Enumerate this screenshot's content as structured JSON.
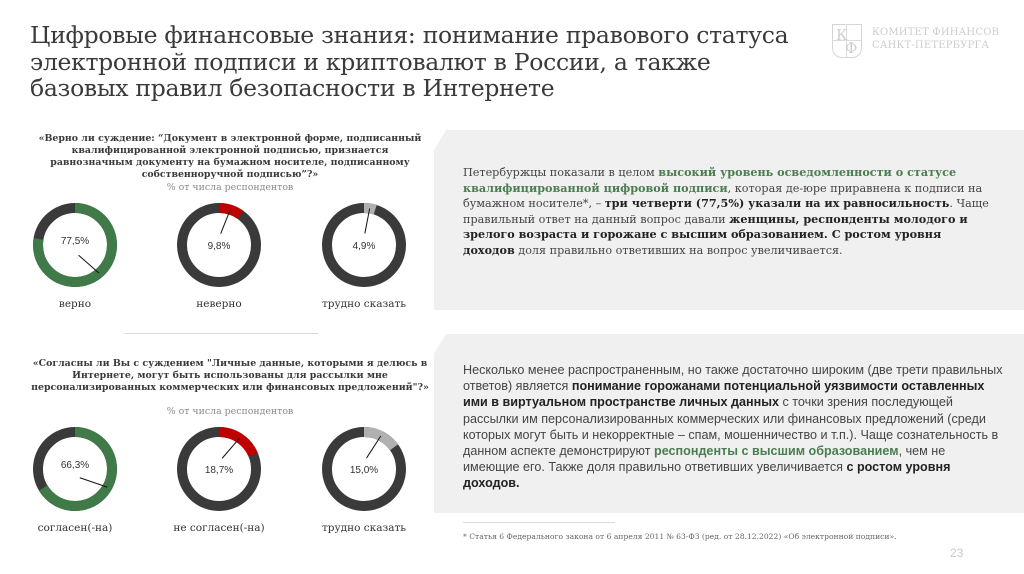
{
  "title": "Цифровые финансовые знания: понимание правового статуса электронной подписи и криптовалют в России, а также базовых правил безопасности в Интернете",
  "logo": {
    "mark_letters": [
      "К",
      "Ф"
    ],
    "line1": "КОМИТЕТ ФИНАНСОВ",
    "line2": "САНКТ-ПЕТЕРБУРГА"
  },
  "colors": {
    "correct": "#3f7a48",
    "incorrect": "#c00000",
    "unsure": "#b0b0b0",
    "base": "#3a3a3a",
    "panel_bg": "#f0f0f0",
    "highlight_green": "#4a7d4f"
  },
  "section1": {
    "question": "«Верно ли суждение: “Документ в электронной форме, подписанный квалифицированной электронной подписью, признается равнозначным документу на бумажном носителе, подписанному собственноручной подписью”?»",
    "subnote": "% от числа респондентов",
    "donuts": [
      {
        "label": "верно",
        "value_text": "77,5%",
        "value": 77.5,
        "color_key": "correct"
      },
      {
        "label": "неверно",
        "value_text": "9,8%",
        "value": 9.8,
        "color_key": "incorrect"
      },
      {
        "label": "трудно сказать",
        "value_text": "4,9%",
        "value": 4.9,
        "color_key": "unsure"
      }
    ],
    "panel": {
      "p1": "Петербуржцы показали в целом ",
      "g1": "высокий уровень осведомленности о статусе квалифицированной цифровой подписи",
      "p2": ", которая де-юре приравнена к подписи на бумажном носителе*, – ",
      "b1": "три четверти (77,5%) указали на их равносильность",
      "p3": ". Чаще правильный ответ на данный вопрос давали ",
      "b2": "женщины, респонденты молодого и зрелого возраста и горожане с высшим образованием. С ростом уровня доходов",
      "p4": " доля правильно ответивших на вопрос увеличивается."
    }
  },
  "section2": {
    "question": "«Согласны ли Вы с суждением \"Личные данные, которыми я делюсь в Интернете, могут быть использованы для рассылки мне персонализированных коммерческих или финансовых предложений\"?»",
    "subnote": "% от числа респондентов",
    "donuts": [
      {
        "label": "согласен(-на)",
        "value_text": "66,3%",
        "value": 66.3,
        "color_key": "correct"
      },
      {
        "label": "не согласен(-на)",
        "value_text": "18,7%",
        "value": 18.7,
        "color_key": "incorrect"
      },
      {
        "label": "трудно сказать",
        "value_text": "15,0%",
        "value": 15.0,
        "color_key": "unsure"
      }
    ],
    "panel": {
      "p1": "Несколько менее распространенным, но также достаточно широким (две трети правильных ответов) является ",
      "b1": "понимание горожанами потенциальной уязвимости оставленных ими в виртуальном пространстве личных данных",
      "p2": " с точки зрения последующей рассылки им персонализированных коммерческих или финансовых предложений (среди которых могут быть и некорректные – спам, мошенничество и т.п.). Чаще сознательность в данном аспекте демонстрируют ",
      "g1": "респонденты с высшим образованием",
      "p3": ", чем не имеющие его. Также доля правильно ответивших увеличивается ",
      "b2": "с ростом уровня доходов."
    }
  },
  "footnote": "* Статья 6 Федерального закона от 6 апреля 2011 № 63-ФЗ (ред. от 28.12.2022) «Об электронной подписи».",
  "page_number": "23",
  "chart_data": [
    {
      "type": "pie",
      "title": "«Верно ли суждение: “Документ в электронной форме, подписанный квалифицированной электронной подписью, признается равнозначным документу на бумажном носителе, подписанному собственноручной подписью”?»",
      "subtitle": "% от числа респондентов",
      "categories": [
        "верно",
        "неверно",
        "трудно сказать"
      ],
      "values": [
        77.5,
        9.8,
        4.9
      ],
      "style": "three separate donuts, each highlighting one share against dark remainder"
    },
    {
      "type": "pie",
      "title": "«Согласны ли Вы с суждением \"Личные данные, которыми я делюсь в Интернете, могут быть использованы для рассылки мне персонализированных коммерческих или финансовых предложений\"?»",
      "subtitle": "% от числа респондентов",
      "categories": [
        "согласен(-на)",
        "не согласен(-на)",
        "трудно сказать"
      ],
      "values": [
        66.3,
        18.7,
        15.0
      ],
      "style": "three separate donuts, each highlighting one share against dark remainder"
    }
  ]
}
